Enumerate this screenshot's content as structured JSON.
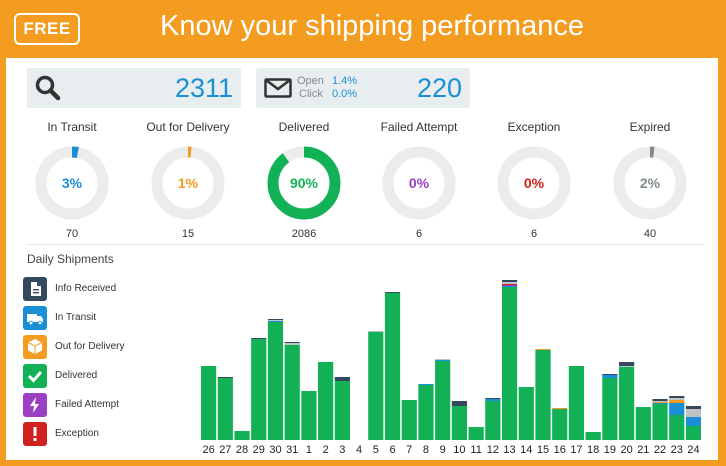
{
  "header": {
    "badge": "FREE",
    "title": "Know your shipping performance"
  },
  "summary": {
    "total": "2311",
    "open_label": "Open",
    "open_value": "1.4%",
    "click_label": "Click",
    "click_value": "0.0%",
    "emails": "220"
  },
  "statuses": [
    {
      "label": "In Transit",
      "percent": "3%",
      "fraction": 0.03,
      "count": "70",
      "color": "#1a8fd6"
    },
    {
      "label": "Out for Delivery",
      "percent": "1%",
      "fraction": 0.01,
      "count": "15",
      "color": "#f39c1f"
    },
    {
      "label": "Delivered",
      "percent": "90%",
      "fraction": 0.9,
      "count": "2086",
      "color": "#13b155"
    },
    {
      "label": "Failed Attempt",
      "percent": "0%",
      "fraction": 0.0,
      "count": "6",
      "color": "#9b3fc3"
    },
    {
      "label": "Exception",
      "percent": "0%",
      "fraction": 0.0,
      "count": "6",
      "color": "#d0211c"
    },
    {
      "label": "Expired",
      "percent": "2%",
      "fraction": 0.02,
      "count": "40",
      "color": "#7f8c8d"
    }
  ],
  "daily": {
    "title": "Daily Shipments",
    "legend": [
      {
        "label": "Info Received",
        "color": "#34495e",
        "icon": "document-icon"
      },
      {
        "label": "In Transit",
        "color": "#1a8fd6",
        "icon": "truck-icon"
      },
      {
        "label": "Out for Delivery",
        "color": "#f39c1f",
        "icon": "box-icon"
      },
      {
        "label": "Delivered",
        "color": "#13b155",
        "icon": "checkmark-icon"
      },
      {
        "label": "Failed Attempt",
        "color": "#9b3fc3",
        "icon": "lightning-icon"
      },
      {
        "label": "Exception",
        "color": "#d0211c",
        "icon": "exclamation-icon"
      }
    ]
  },
  "chart_data": {
    "type": "bar",
    "stacked": true,
    "categories": [
      "26",
      "27",
      "28",
      "29",
      "30",
      "31",
      "1",
      "2",
      "3",
      "4",
      "5",
      "6",
      "7",
      "8",
      "9",
      "10",
      "11",
      "12",
      "13",
      "14",
      "15",
      "16",
      "17",
      "18",
      "19",
      "20",
      "21",
      "22",
      "23",
      "24"
    ],
    "series": [
      {
        "name": "Delivered",
        "color": "#13b155",
        "values": [
          74,
          62,
          9,
          101,
          118,
          95,
          49,
          78,
          59,
          0,
          108,
          147,
          40,
          55,
          79,
          34,
          13,
          39,
          153,
          53,
          90,
          31,
          74,
          8,
          62,
          73,
          33,
          36,
          25,
          14
        ]
      },
      {
        "name": "In Transit",
        "color": "#1a8fd6",
        "values": [
          0,
          0,
          0,
          0,
          1,
          0,
          0,
          0,
          0,
          0,
          0,
          0,
          0,
          1,
          1,
          0,
          0,
          2,
          1,
          0,
          0,
          0,
          0,
          0,
          3,
          0,
          0,
          1,
          12,
          9
        ]
      },
      {
        "name": "Out for Delivery",
        "color": "#f39c1f",
        "values": [
          0,
          0,
          0,
          0,
          0,
          0,
          0,
          0,
          0,
          0,
          0,
          0,
          0,
          0,
          0,
          0,
          0,
          0,
          0,
          0,
          1,
          1,
          0,
          0,
          0,
          0,
          0,
          1,
          3,
          0
        ]
      },
      {
        "name": "Failed Attempt",
        "color": "#9b3fc3",
        "values": [
          0,
          0,
          0,
          0,
          0,
          0,
          0,
          0,
          0,
          0,
          0,
          0,
          0,
          0,
          0,
          0,
          0,
          0,
          1,
          0,
          0,
          0,
          0,
          0,
          0,
          0,
          0,
          0,
          0,
          0
        ]
      },
      {
        "name": "Exception",
        "color": "#d0211c",
        "values": [
          0,
          0,
          0,
          0,
          0,
          0,
          0,
          0,
          0,
          0,
          0,
          0,
          0,
          0,
          0,
          0,
          0,
          0,
          1,
          0,
          0,
          0,
          0,
          0,
          0,
          0,
          0,
          0,
          0,
          0
        ]
      },
      {
        "name": "Expired",
        "color": "#bdc3c7",
        "values": [
          0,
          0,
          0,
          0,
          1,
          2,
          0,
          0,
          0,
          0,
          1,
          0,
          0,
          0,
          1,
          0,
          0,
          0,
          2,
          0,
          0,
          0,
          0,
          0,
          0,
          1,
          0,
          1,
          2,
          8
        ]
      },
      {
        "name": "Info Received",
        "color": "#34495e",
        "values": [
          0,
          1,
          0,
          1,
          1,
          1,
          0,
          0,
          4,
          0,
          0,
          1,
          0,
          0,
          0,
          5,
          0,
          1,
          2,
          0,
          0,
          0,
          0,
          0,
          1,
          4,
          0,
          2,
          2,
          3
        ]
      }
    ],
    "ylim": [
      0,
      160
    ]
  }
}
